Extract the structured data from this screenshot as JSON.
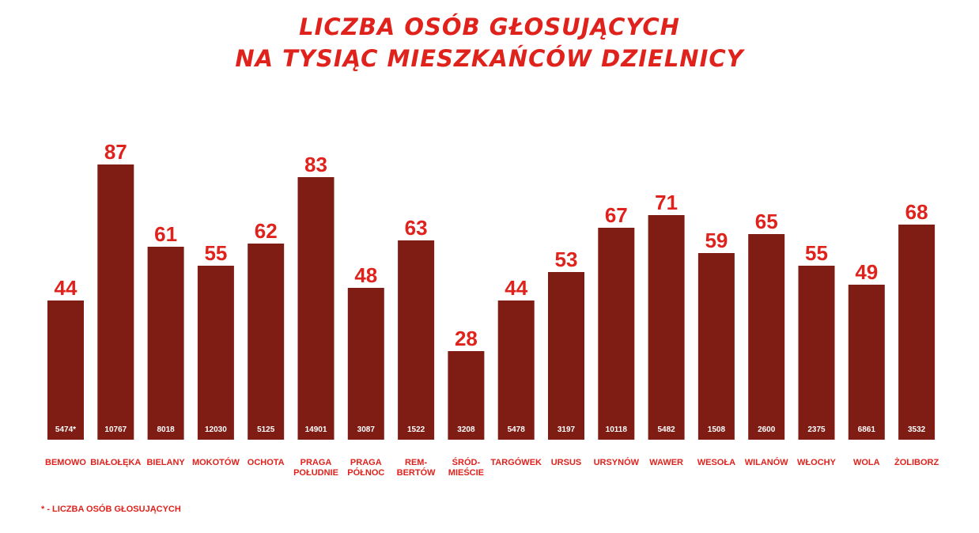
{
  "title_line1": "LICZBA OSÓB GŁOSUJĄCYCH",
  "title_line2": "NA TYSIĄC MIESZKAŃCÓW DZIELNICY",
  "footnote": "* - LICZBA OSÓB GŁOSUJĄCYCH",
  "colors": {
    "bar": "#7f1d15",
    "accent": "#e0221c",
    "bar_text": "#ffffff"
  },
  "chart_data": {
    "type": "bar",
    "title": "LICZBA OSÓB GŁOSUJĄCYCH NA TYSIĄC MIESZKAŃCÓW DZIELNICY",
    "categories": [
      [
        "BEMOWO"
      ],
      [
        "BIAŁOŁĘKA"
      ],
      [
        "BIELANY"
      ],
      [
        "MOKOTÓW"
      ],
      [
        "OCHOTA"
      ],
      [
        "PRAGA",
        "POŁUDNIE"
      ],
      [
        "PRAGA",
        "PÓŁNOC"
      ],
      [
        "REM-",
        "BERTÓW"
      ],
      [
        "ŚRÓD-",
        "MIEŚCIE"
      ],
      [
        "TARGÓWEK"
      ],
      [
        "URSUS"
      ],
      [
        "URSYNÓW"
      ],
      [
        "WAWER"
      ],
      [
        "WESOŁA"
      ],
      [
        "WILANÓW"
      ],
      [
        "WŁOCHY"
      ],
      [
        "WOLA"
      ],
      [
        "ŻOLIBORZ"
      ]
    ],
    "values": [
      44,
      87,
      61,
      55,
      62,
      83,
      48,
      63,
      28,
      44,
      53,
      67,
      71,
      59,
      65,
      55,
      49,
      68
    ],
    "bar_labels": [
      "5474*",
      "10767",
      "8018",
      "12030",
      "5125",
      "14901",
      "3087",
      "1522",
      "3208",
      "5478",
      "3197",
      "10118",
      "5482",
      "1508",
      "2600",
      "2375",
      "6861",
      "3532"
    ],
    "xlabel": "",
    "ylabel": "",
    "grid": false,
    "legend": "none"
  }
}
